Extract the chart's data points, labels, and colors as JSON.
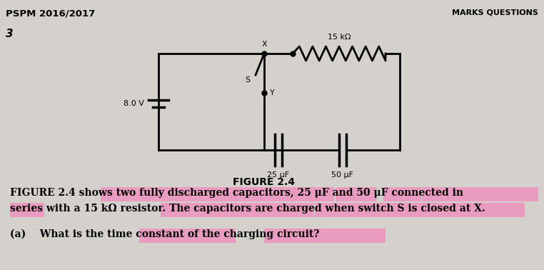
{
  "background_color": "#c8c8c8",
  "paper_color": "#d4d0cc",
  "title_text": "PSPM 2016/2017",
  "title_right_text": "MARKS QUESTIONS",
  "question_number": "3",
  "figure_label": "FIGURE 2.4",
  "description_line1": "FIGURE 2.4 shows two fully discharged capacitors, 25 μF and 50 μF connected in",
  "description_line2": "series with a 15 kΩ resistor. The capacitors are charged when switch S is closed at X.",
  "question_a_prefix": "(a)    What is the time constant of the charging circuit?",
  "circuit": {
    "battery_label": "8.0 V",
    "resistor_label": "15 kΩ",
    "cap1_label": "25 μF",
    "cap2_label": "50 μF",
    "switch_x_label": "X",
    "switch_s_label": "S",
    "switch_y_label": "Y"
  },
  "highlight_color": "#ff69b4",
  "highlight_alpha": 0.5
}
